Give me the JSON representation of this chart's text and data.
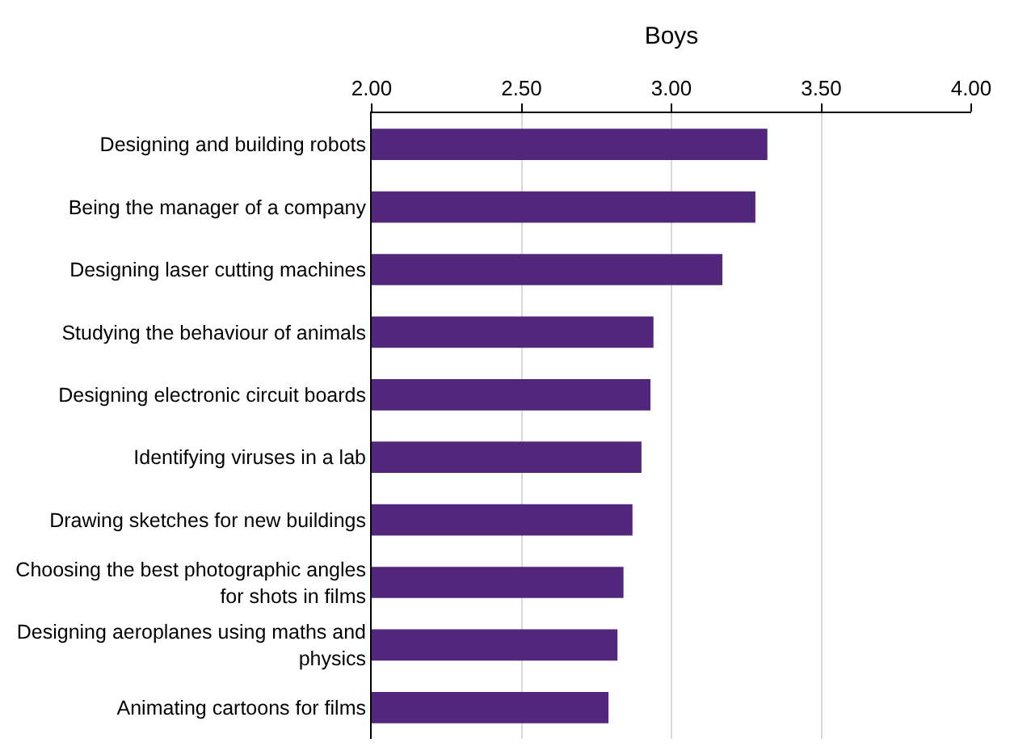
{
  "chart_data": {
    "type": "bar",
    "orientation": "horizontal",
    "xlabel": "Boys",
    "categories": [
      "Designing and building robots",
      "Being the manager of a company",
      "Designing laser cutting machines",
      "Studying the behaviour of animals",
      "Designing electronic circuit boards",
      "Identifying viruses in a lab",
      "Drawing sketches for new buildings",
      "Choosing the best photographic angles for shots in films",
      "Designing aeroplanes using maths and physics",
      "Animating cartoons for films"
    ],
    "values": [
      3.32,
      3.28,
      3.17,
      2.94,
      2.93,
      2.9,
      2.87,
      2.84,
      2.82,
      2.79
    ],
    "color": "#52267a",
    "xlim": [
      2.0,
      4.0
    ],
    "xticks": [
      {
        "value": 2,
        "label": "2.00"
      },
      {
        "value": 2.5,
        "label": "2.50"
      },
      {
        "value": 3,
        "label": "3.00"
      },
      {
        "value": 3.5,
        "label": "3.50"
      },
      {
        "value": 4,
        "label": "4.00"
      }
    ],
    "grid": "x"
  }
}
